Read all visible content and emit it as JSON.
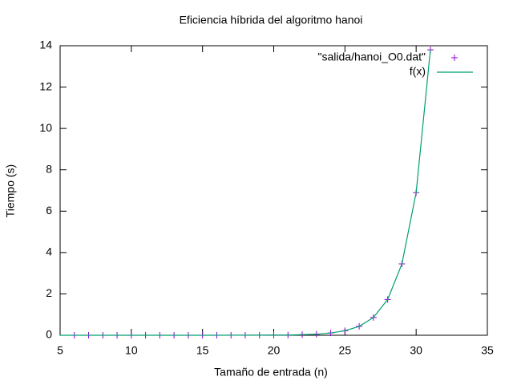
{
  "chart_data": {
    "type": "scatter",
    "title": "Eficiencia híbrida del algoritmo hanoi",
    "xlabel": "Tamaño de entrada (n)",
    "ylabel": "Tiempo (s)",
    "xlim": [
      5,
      35
    ],
    "xticks": [
      5,
      10,
      15,
      20,
      25,
      30,
      35
    ],
    "ylim": [
      0,
      14
    ],
    "yticks": [
      0,
      2,
      4,
      6,
      8,
      10,
      12,
      14
    ],
    "legend": "top-right",
    "series": [
      {
        "name": "\"salida/hanoi_O0.dat\"",
        "color": "#9400d3",
        "style": "points",
        "x": [
          6,
          7,
          8,
          9,
          10,
          11,
          12,
          13,
          14,
          15,
          16,
          17,
          18,
          19,
          20,
          21,
          22,
          23,
          24,
          25,
          26,
          27,
          28,
          29,
          30,
          31
        ],
        "values": [
          0,
          0,
          0,
          0,
          0,
          0,
          0,
          0,
          0,
          0,
          0,
          0,
          0,
          0,
          0.01,
          0.01,
          0.03,
          0.05,
          0.11,
          0.22,
          0.43,
          0.86,
          1.73,
          3.45,
          6.9,
          13.8
        ]
      },
      {
        "name": "f(x)",
        "color": "#009e73",
        "style": "line",
        "x": [
          5,
          10,
          15,
          20,
          21,
          22,
          23,
          24,
          25,
          26,
          27,
          28,
          29,
          30,
          31
        ],
        "values": [
          0,
          0,
          0,
          0.01,
          0.01,
          0.03,
          0.05,
          0.11,
          0.22,
          0.43,
          0.86,
          1.73,
          3.45,
          6.9,
          13.8
        ]
      }
    ]
  }
}
